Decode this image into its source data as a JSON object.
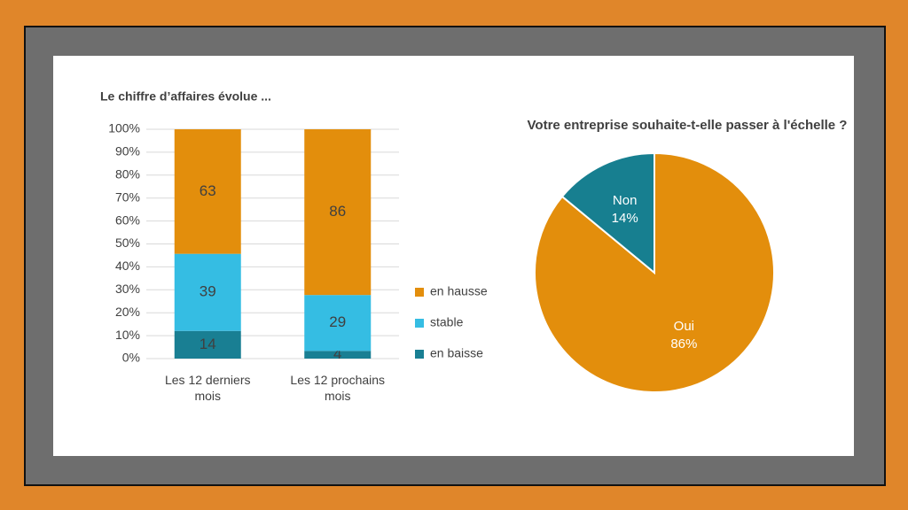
{
  "chart_data": [
    {
      "type": "bar",
      "stacking": "percent",
      "title": "Le chiffre d’affaires évolue ...",
      "categories": [
        "Les 12 derniers mois",
        "Les 12 prochains mois"
      ],
      "series": [
        {
          "name": "en baisse",
          "color": "#197f93",
          "values": [
            14,
            4
          ]
        },
        {
          "name": "stable",
          "color": "#35bde3",
          "values": [
            39,
            29
          ]
        },
        {
          "name": "en hausse",
          "color": "#e38e0c",
          "values": [
            63,
            86
          ]
        }
      ],
      "ylim": [
        0,
        100
      ],
      "yticks": [
        {
          "value": 0,
          "label": "0%"
        },
        {
          "value": 10,
          "label": "10%"
        },
        {
          "value": 20,
          "label": "20%"
        },
        {
          "value": 30,
          "label": "30%"
        },
        {
          "value": 40,
          "label": "40%"
        },
        {
          "value": 50,
          "label": "50%"
        },
        {
          "value": 60,
          "label": "60%"
        },
        {
          "value": 70,
          "label": "70%"
        },
        {
          "value": 80,
          "label": "80%"
        },
        {
          "value": 90,
          "label": "90%"
        },
        {
          "value": 100,
          "label": "100%"
        }
      ],
      "grid": true,
      "legend": "right"
    },
    {
      "type": "pie",
      "title": "Votre entreprise souhaite-t-elle passer à l'échelle ?",
      "categories": [
        "Oui",
        "Non"
      ],
      "values": [
        86,
        14
      ],
      "value_labels": [
        "86%",
        "14%"
      ],
      "colors": [
        "#e38e0c",
        "#177f90"
      ]
    }
  ]
}
